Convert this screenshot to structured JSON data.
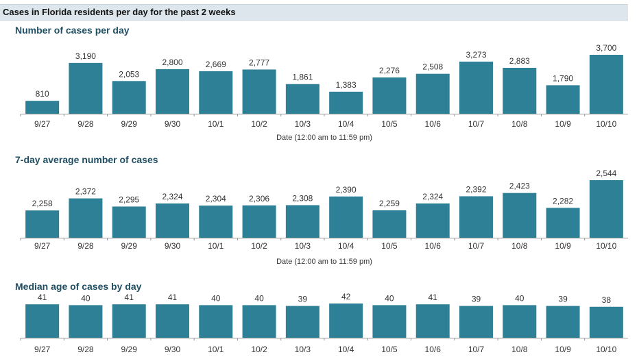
{
  "header": {
    "title": "Cases in Florida residents per day for the past 2 weeks"
  },
  "colors": {
    "bar": "#2e8096",
    "axis": "#999999",
    "title": "#1f4e63"
  },
  "chart_data": [
    {
      "type": "bar",
      "title": "Number of cases per day",
      "xlabel": "Date (12:00 am to 11:59 pm)",
      "categories": [
        "9/27",
        "9/28",
        "9/29",
        "9/30",
        "10/1",
        "10/2",
        "10/3",
        "10/4",
        "10/5",
        "10/6",
        "10/7",
        "10/8",
        "10/9",
        "10/10"
      ],
      "values": [
        810,
        3190,
        2053,
        2800,
        2669,
        2777,
        1861,
        1383,
        2276,
        2508,
        3273,
        2883,
        1790,
        3700
      ],
      "labels": [
        "810",
        "3,190",
        "2,053",
        "2,800",
        "2,669",
        "2,777",
        "1,861",
        "1,383",
        "2,276",
        "2,508",
        "3,273",
        "2,883",
        "1,790",
        "3,700"
      ],
      "ylim": [
        0,
        3700
      ]
    },
    {
      "type": "bar",
      "title": "7-day average number of cases",
      "xlabel": "Date (12:00 am to 11:59 pm)",
      "categories": [
        "9/27",
        "9/28",
        "9/29",
        "9/30",
        "10/1",
        "10/2",
        "10/3",
        "10/4",
        "10/5",
        "10/6",
        "10/7",
        "10/8",
        "10/9",
        "10/10"
      ],
      "values": [
        2258,
        2372,
        2295,
        2324,
        2304,
        2306,
        2308,
        2390,
        2259,
        2324,
        2392,
        2423,
        2282,
        2544
      ],
      "labels": [
        "2,258",
        "2,372",
        "2,295",
        "2,324",
        "2,304",
        "2,306",
        "2,308",
        "2,390",
        "2,259",
        "2,324",
        "2,392",
        "2,423",
        "2,282",
        "2,544"
      ],
      "ylim": [
        2000,
        2544
      ]
    },
    {
      "type": "bar",
      "title": "Median age of cases by day",
      "xlabel": "",
      "categories": [
        "9/27",
        "9/28",
        "9/29",
        "9/30",
        "10/1",
        "10/2",
        "10/3",
        "10/4",
        "10/5",
        "10/6",
        "10/7",
        "10/8",
        "10/9",
        "10/10"
      ],
      "values": [
        41,
        40,
        41,
        41,
        40,
        40,
        39,
        42,
        40,
        41,
        39,
        40,
        39,
        38
      ],
      "labels": [
        "41",
        "40",
        "41",
        "41",
        "40",
        "40",
        "39",
        "42",
        "40",
        "41",
        "39",
        "40",
        "39",
        "38"
      ],
      "ylim": [
        0,
        42
      ]
    }
  ]
}
